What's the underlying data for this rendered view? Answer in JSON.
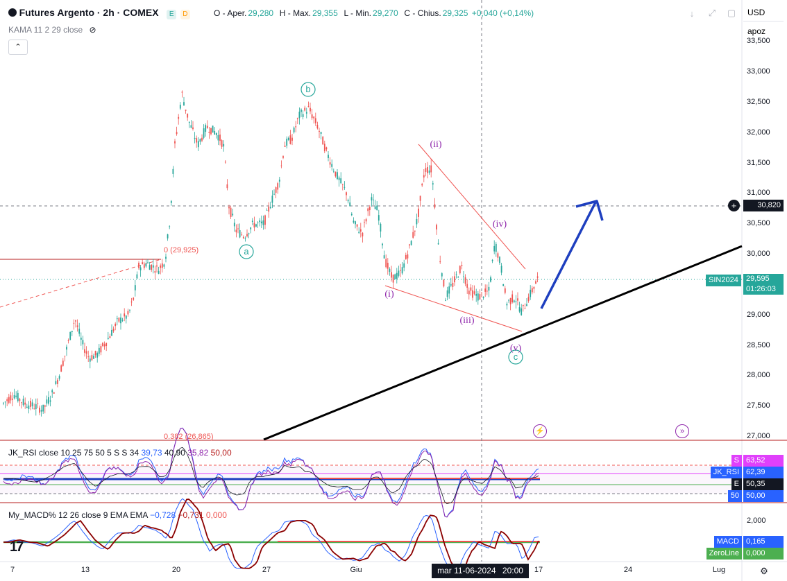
{
  "header": {
    "symbol": "Futures Argento · 2h · COMEX",
    "open_label": "O - Aper.",
    "open": "29,280",
    "high_label": "H - Max.",
    "high": "29,355",
    "low_label": "L - Min.",
    "low": "29,270",
    "close_label": "C - Chius.",
    "close": "29,325",
    "change": "+0,040 (+0,14%)",
    "indicator": "KAMA 11 2 29 close",
    "badge_e": "E",
    "badge_d": "D"
  },
  "right_panel": {
    "currency": "USD",
    "scale": "apoz"
  },
  "price_axis": {
    "ticks": [
      "33,500",
      "33,000",
      "32,500",
      "32,000",
      "31,500",
      "31,000",
      "30,500",
      "30,000",
      "29,500",
      "29,000",
      "28,500",
      "28,000",
      "27,500",
      "27,000"
    ],
    "crosshair_price": "30,820",
    "symbol_tag": "SIN2024",
    "last_price": "29,595",
    "countdown": "01:26:03"
  },
  "annotations": {
    "fib_0": "0 (29,925)",
    "fib_382": "0.382 (26,865)",
    "waves": {
      "a": "a",
      "b": "b",
      "c": "c",
      "i": "(i)",
      "ii": "(ii)",
      "iii": "(iii)",
      "iv": "(iv)",
      "v": "(v)"
    }
  },
  "rsi_pane": {
    "title": "JK_RSI close 10 25 75 50 5 S S 34",
    "v1": "39,73",
    "v2": "40,90",
    "v3": "35,82",
    "v4": "50,00",
    "labels": [
      {
        "k": "S",
        "v": "63,52",
        "color": "#e040fb"
      },
      {
        "k": "JK_RSI",
        "v": "62,39",
        "color": "#2962ff"
      },
      {
        "k": "E",
        "v": "50,35",
        "color": "#131722"
      },
      {
        "k": "50",
        "v": "50,00",
        "color": "#2962ff"
      }
    ]
  },
  "macd_pane": {
    "title": "My_MACD% 12 26 close 9 EMA EMA",
    "v1": "−0,728",
    "v2": "−0,731",
    "v3": "0,000",
    "axis_tick": "2,000",
    "labels": [
      {
        "k": "MACD",
        "v": "0,165",
        "color": "#2962ff"
      },
      {
        "k": "ZeroLine",
        "v": "0,000",
        "color": "#4caf50"
      }
    ]
  },
  "time_axis": {
    "ticks": [
      "7",
      "13",
      "20",
      "27",
      "Giu",
      "17",
      "24",
      "Lug"
    ],
    "crosshair_time": "mar 11-06-2024",
    "crosshair_clock": "20:00"
  },
  "colors": {
    "up": "#26a69a",
    "down": "#ef5350",
    "wave": "#8e24aa",
    "circle_wave": "#26a69a",
    "accent": "#2962ff"
  }
}
